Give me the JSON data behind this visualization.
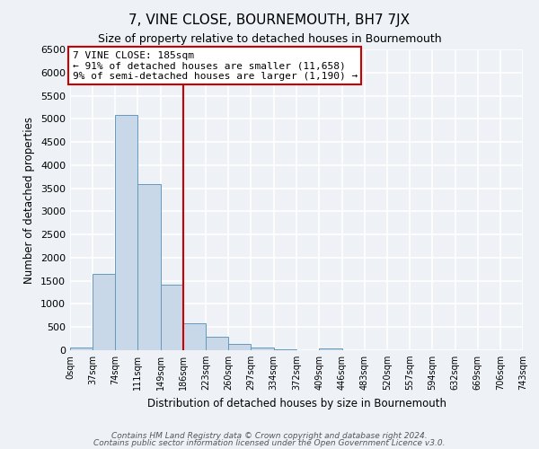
{
  "title": "7, VINE CLOSE, BOURNEMOUTH, BH7 7JX",
  "subtitle": "Size of property relative to detached houses in Bournemouth",
  "xlabel": "Distribution of detached houses by size in Bournemouth",
  "ylabel": "Number of detached properties",
  "bar_color": "#c8d8e8",
  "bar_edge_color": "#6699bb",
  "background_color": "#eef2f7",
  "grid_color": "#ffffff",
  "bin_edges": [
    0,
    37,
    74,
    111,
    149,
    186,
    223,
    260,
    297,
    334,
    372,
    409,
    446,
    483,
    520,
    557,
    594,
    632,
    669,
    706,
    743
  ],
  "bin_labels": [
    "0sqm",
    "37sqm",
    "74sqm",
    "111sqm",
    "149sqm",
    "186sqm",
    "223sqm",
    "260sqm",
    "297sqm",
    "334sqm",
    "372sqm",
    "409sqm",
    "446sqm",
    "483sqm",
    "520sqm",
    "557sqm",
    "594sqm",
    "632sqm",
    "669sqm",
    "706sqm",
    "743sqm"
  ],
  "counts": [
    50,
    1640,
    5080,
    3580,
    1420,
    590,
    300,
    145,
    60,
    20,
    5,
    45,
    0,
    0,
    0,
    0,
    0,
    0,
    0,
    0
  ],
  "ylim": [
    0,
    6500
  ],
  "yticks": [
    0,
    500,
    1000,
    1500,
    2000,
    2500,
    3000,
    3500,
    4000,
    4500,
    5000,
    5500,
    6000,
    6500
  ],
  "vline_x": 186,
  "vline_color": "#cc0000",
  "annotation_title": "7 VINE CLOSE: 185sqm",
  "annotation_line1": "← 91% of detached houses are smaller (11,658)",
  "annotation_line2": "9% of semi-detached houses are larger (1,190) →",
  "annotation_box_color": "#cc0000",
  "footnote1": "Contains HM Land Registry data © Crown copyright and database right 2024.",
  "footnote2": "Contains public sector information licensed under the Open Government Licence v3.0."
}
